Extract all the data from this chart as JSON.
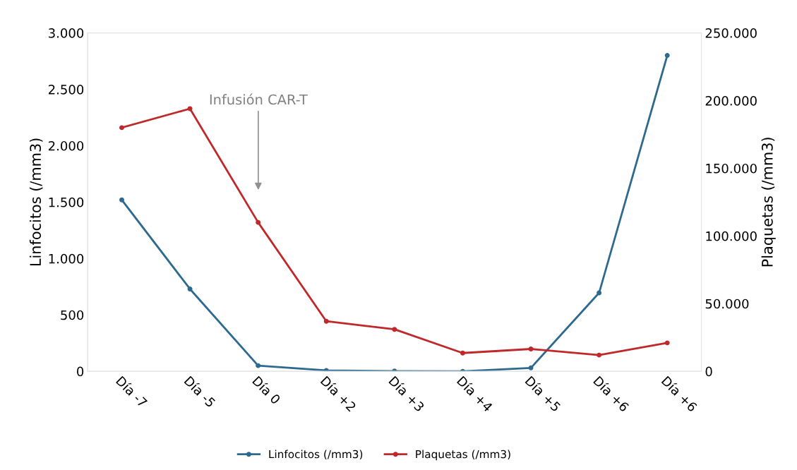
{
  "chart_data": {
    "type": "line",
    "categories": [
      "Día -7",
      "Día -5",
      "Día 0",
      "Día +2",
      "Día +3",
      "Día +4",
      "Día +5",
      "Día +6",
      "Día +6"
    ],
    "ylabel": "Linfocitos (/mm3)",
    "y2label": "Plaquetas (/mm3)",
    "ylim": [
      0,
      3000
    ],
    "yticks": [
      0,
      {
        "value": 500,
        "label": "500"
      },
      {
        "value": 1000,
        "label": "1.000"
      },
      {
        "value": 1500,
        "label": "1.500"
      },
      {
        "value": 2000,
        "label": "2.000"
      },
      {
        "value": 2500,
        "label": "2.500"
      },
      {
        "value": 3000,
        "label": "3.000"
      }
    ],
    "y2lim": [
      0,
      250000
    ],
    "y2ticks": [
      0,
      {
        "value": 50000,
        "label": "50.000"
      },
      {
        "value": 100000,
        "label": "100.000"
      },
      {
        "value": 150000,
        "label": "150.000"
      },
      {
        "value": 200000,
        "label": "200.000"
      },
      {
        "value": 250000,
        "label": "250.000"
      }
    ],
    "series": [
      {
        "name": "Linfocitos (/mm3)",
        "color": "#2e6a8e",
        "values": [
          1520,
          730,
          50,
          8,
          2,
          0,
          30,
          695,
          2800
        ]
      },
      {
        "name": "Plaquetas (/mm3)",
        "color": "#c0282a",
        "axis": "y2",
        "values": [
          180000,
          194000,
          110000,
          37000,
          31000,
          13500,
          16500,
          12000,
          21000
        ]
      }
    ],
    "annotations": [
      "Infusión CAR-T"
    ],
    "marker": "circle",
    "line_style": "solid",
    "legend": "bottom",
    "grid": false
  }
}
